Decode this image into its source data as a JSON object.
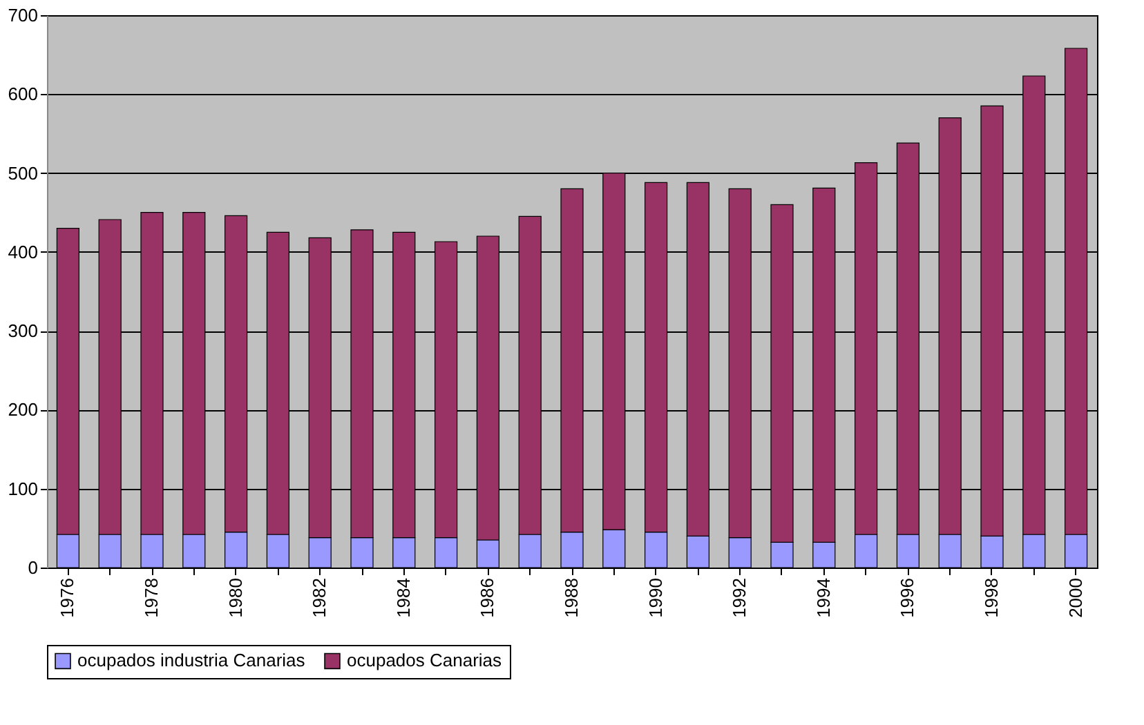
{
  "chart_data": {
    "type": "bar",
    "stacked": true,
    "categories": [
      "1976",
      null,
      "1978",
      null,
      "1980",
      null,
      "1982",
      null,
      "1984",
      null,
      "1986",
      null,
      "1988",
      null,
      "1990",
      null,
      "1992",
      null,
      "1994",
      null,
      "1996",
      null,
      "1998",
      null,
      "2000"
    ],
    "series": [
      {
        "name": "ocupados industria Canarias",
        "color": "#9999ff",
        "values": [
          42,
          42,
          42,
          42,
          45,
          42,
          38,
          38,
          38,
          38,
          35,
          42,
          45,
          48,
          45,
          40,
          38,
          32,
          32,
          42,
          42,
          42,
          40,
          42,
          42
        ]
      },
      {
        "name": "ocupados Canarias",
        "color": "#993366",
        "values": [
          388,
          399,
          408,
          408,
          401,
          383,
          380,
          390,
          387,
          375,
          385,
          403,
          435,
          452,
          443,
          448,
          442,
          428,
          449,
          471,
          496,
          528,
          545,
          581,
          616
        ]
      }
    ],
    "ylim": [
      0,
      700
    ],
    "yticks": [
      0,
      100,
      200,
      300,
      400,
      500,
      600,
      700
    ],
    "grid": "y",
    "legend": "bottom"
  }
}
